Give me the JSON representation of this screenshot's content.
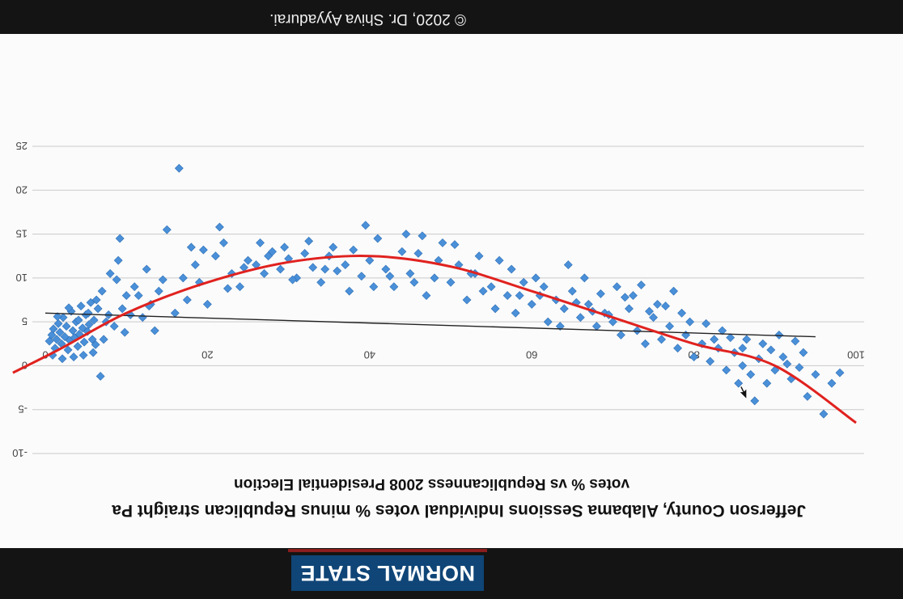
{
  "video": {
    "copyright": "© 2020, Dr. Shiva Ayyadurai.",
    "badge": "NORMAL STATE"
  },
  "chart_data": {
    "type": "scatter",
    "title": "Jefferson County, Alabama Sessions Individual votes % minus Republican straight Pa",
    "subtitle": "votes % vs Republicanness 2008 Presidential Election",
    "xlabel": "",
    "ylabel": "",
    "xlim": [
      0,
      100
    ],
    "ylim": [
      -10,
      25
    ],
    "x_ticks": [
      "0",
      "20",
      "40",
      "60",
      "80",
      "100"
    ],
    "y_ticks": [
      "-10",
      "-5",
      "0",
      "5",
      "10",
      "15",
      "20",
      "25"
    ],
    "grid": true,
    "marker_color": "#4a90d9",
    "poly_fit_color": "#e0221f",
    "linear_fit_color": "#222222",
    "linear_fit": [
      [
        0,
        6
      ],
      [
        95,
        3.3
      ]
    ],
    "poly_fit": [
      [
        -4,
        -0.8
      ],
      [
        2,
        2
      ],
      [
        10,
        6
      ],
      [
        20,
        9.5
      ],
      [
        30,
        11.8
      ],
      [
        40,
        12.5
      ],
      [
        50,
        11.3
      ],
      [
        60,
        8.5
      ],
      [
        70,
        5.5
      ],
      [
        80,
        2.5
      ],
      [
        90,
        0
      ],
      [
        100,
        -6.5
      ]
    ],
    "points": [
      [
        0.5,
        2.8
      ],
      [
        0.8,
        3.5
      ],
      [
        1.0,
        4.2
      ],
      [
        1.2,
        2.0
      ],
      [
        1.4,
        3.0
      ],
      [
        1.6,
        4.8
      ],
      [
        1.8,
        3.8
      ],
      [
        2.0,
        2.5
      ],
      [
        2.2,
        5.5
      ],
      [
        2.4,
        3.3
      ],
      [
        2.6,
        4.5
      ],
      [
        2.8,
        1.8
      ],
      [
        3.0,
        2.9
      ],
      [
        3.2,
        6.2
      ],
      [
        3.4,
        4.0
      ],
      [
        3.6,
        3.2
      ],
      [
        3.8,
        5.0
      ],
      [
        4.0,
        2.2
      ],
      [
        4.2,
        3.6
      ],
      [
        4.4,
        6.8
      ],
      [
        4.6,
        4.3
      ],
      [
        4.8,
        2.7
      ],
      [
        5.0,
        5.8
      ],
      [
        5.2,
        3.9
      ],
      [
        5.4,
        4.7
      ],
      [
        5.6,
        7.2
      ],
      [
        5.8,
        3.0
      ],
      [
        6.0,
        5.2
      ],
      [
        6.2,
        2.4
      ],
      [
        6.5,
        6.5
      ],
      [
        6.8,
        -1.2
      ],
      [
        7.0,
        8.5
      ],
      [
        7.5,
        5.0
      ],
      [
        8.0,
        10.5
      ],
      [
        8.5,
        4.5
      ],
      [
        9.0,
        12.0
      ],
      [
        9.5,
        6.5
      ],
      [
        10.0,
        8.0
      ],
      [
        11.0,
        9.0
      ],
      [
        12.0,
        5.5
      ],
      [
        12.5,
        11.0
      ],
      [
        13.0,
        7.0
      ],
      [
        14.0,
        8.5
      ],
      [
        15.0,
        15.5
      ],
      [
        16.0,
        6.0
      ],
      [
        17.0,
        10.0
      ],
      [
        18.0,
        13.5
      ],
      [
        19.0,
        9.5
      ],
      [
        20.0,
        7.0
      ],
      [
        21.0,
        12.5
      ],
      [
        22.0,
        14.0
      ],
      [
        23.0,
        10.5
      ],
      [
        24.0,
        9.0
      ],
      [
        25.0,
        12.0
      ],
      [
        26.0,
        11.5
      ],
      [
        27.0,
        10.5
      ],
      [
        28.0,
        13.0
      ],
      [
        29.0,
        11.0
      ],
      [
        30.0,
        12.2
      ],
      [
        31.0,
        10.0
      ],
      [
        32.0,
        12.8
      ],
      [
        33.0,
        11.2
      ],
      [
        34.0,
        9.5
      ],
      [
        35.0,
        12.5
      ],
      [
        36.0,
        10.8
      ],
      [
        37.0,
        11.5
      ],
      [
        38.0,
        13.2
      ],
      [
        39.0,
        10.2
      ],
      [
        40.0,
        12.0
      ],
      [
        41.0,
        14.5
      ],
      [
        42.0,
        11.0
      ],
      [
        43.0,
        9.0
      ],
      [
        44.0,
        13.0
      ],
      [
        45.0,
        10.5
      ],
      [
        46.0,
        12.8
      ],
      [
        47.0,
        8.0
      ],
      [
        48.0,
        10.0
      ],
      [
        49.0,
        14.0
      ],
      [
        50.0,
        9.5
      ],
      [
        51.0,
        11.5
      ],
      [
        52.0,
        7.5
      ],
      [
        53.0,
        10.5
      ],
      [
        54.0,
        8.5
      ],
      [
        55.0,
        9.0
      ],
      [
        56.0,
        12.0
      ],
      [
        57.0,
        8.0
      ],
      [
        58.0,
        6.0
      ],
      [
        59.0,
        9.5
      ],
      [
        60.0,
        7.0
      ],
      [
        61.0,
        8.0
      ],
      [
        62.0,
        5.0
      ],
      [
        63.0,
        7.5
      ],
      [
        64.0,
        6.5
      ],
      [
        65.0,
        8.5
      ],
      [
        66.0,
        5.5
      ],
      [
        67.0,
        7.0
      ],
      [
        68.0,
        4.5
      ],
      [
        69.0,
        6.0
      ],
      [
        70.0,
        5.0
      ],
      [
        71.0,
        3.5
      ],
      [
        72.0,
        6.5
      ],
      [
        73.0,
        4.0
      ],
      [
        74.0,
        2.5
      ],
      [
        75.0,
        5.5
      ],
      [
        76.0,
        3.0
      ],
      [
        77.0,
        4.5
      ],
      [
        78.0,
        2.0
      ],
      [
        79.0,
        3.5
      ],
      [
        80.0,
        1.0
      ],
      [
        81.0,
        2.5
      ],
      [
        82.0,
        0.5
      ],
      [
        83.0,
        2.0
      ],
      [
        84.0,
        -0.5
      ],
      [
        85.0,
        1.5
      ],
      [
        86.0,
        0.0
      ],
      [
        87.0,
        -1.0
      ],
      [
        88.0,
        0.8
      ],
      [
        89.0,
        -2.0
      ],
      [
        90.0,
        -0.5
      ],
      [
        91.0,
        1.0
      ],
      [
        92.0,
        -1.5
      ],
      [
        93.0,
        -0.2
      ],
      [
        94.0,
        -3.5
      ],
      [
        95.0,
        -1.0
      ],
      [
        96.0,
        -5.5
      ],
      [
        97.0,
        -2.0
      ],
      [
        98.0,
        -0.8
      ],
      [
        86.5,
        3.0
      ],
      [
        88.5,
        2.5
      ],
      [
        87.5,
        -4.0
      ],
      [
        75.5,
        7.0
      ],
      [
        77.5,
        8.5
      ],
      [
        73.5,
        9.2
      ],
      [
        71.5,
        7.8
      ],
      [
        68.5,
        8.2
      ],
      [
        66.5,
        10.0
      ],
      [
        64.5,
        11.5
      ],
      [
        61.5,
        9.0
      ],
      [
        57.5,
        11.0
      ],
      [
        53.5,
        12.5
      ],
      [
        46.5,
        14.8
      ],
      [
        44.5,
        15.0
      ],
      [
        39.5,
        16.0
      ],
      [
        34.5,
        11.0
      ],
      [
        29.5,
        13.5
      ],
      [
        26.5,
        14.0
      ],
      [
        21.5,
        15.8
      ],
      [
        18.5,
        11.5
      ],
      [
        16.5,
        22.5
      ],
      [
        11.5,
        8.0
      ],
      [
        9.2,
        14.5
      ],
      [
        8.8,
        9.8
      ],
      [
        7.8,
        5.8
      ],
      [
        7.2,
        3.0
      ],
      [
        6.3,
        7.5
      ],
      [
        5.9,
        1.5
      ],
      [
        5.3,
        6.0
      ],
      [
        4.7,
        1.2
      ],
      [
        4.1,
        5.2
      ],
      [
        3.5,
        1.0
      ],
      [
        2.9,
        6.6
      ],
      [
        2.1,
        0.8
      ],
      [
        1.5,
        5.6
      ],
      [
        0.9,
        1.2
      ],
      [
        89.5,
        1.8
      ],
      [
        90.5,
        3.5
      ],
      [
        91.5,
        0.2
      ],
      [
        92.5,
        2.8
      ],
      [
        93.5,
        1.5
      ],
      [
        84.5,
        3.2
      ],
      [
        85.5,
        -2.0
      ],
      [
        86.0,
        2.0
      ],
      [
        83.5,
        4.0
      ],
      [
        82.5,
        3.0
      ],
      [
        81.5,
        4.8
      ],
      [
        79.5,
        5.0
      ],
      [
        78.5,
        6.0
      ],
      [
        76.5,
        6.8
      ],
      [
        74.5,
        6.2
      ],
      [
        72.5,
        8.0
      ],
      [
        70.5,
        9.0
      ],
      [
        69.5,
        5.8
      ],
      [
        67.5,
        6.2
      ],
      [
        65.5,
        7.2
      ],
      [
        63.5,
        4.5
      ],
      [
        60.5,
        10.0
      ],
      [
        58.5,
        8.0
      ],
      [
        55.5,
        6.5
      ],
      [
        52.5,
        10.5
      ],
      [
        50.5,
        13.8
      ],
      [
        48.5,
        12.0
      ],
      [
        45.5,
        9.5
      ],
      [
        42.5,
        10.2
      ],
      [
        40.5,
        9.0
      ],
      [
        37.5,
        8.5
      ],
      [
        35.5,
        13.5
      ],
      [
        32.5,
        14.2
      ],
      [
        30.5,
        9.8
      ],
      [
        27.5,
        12.5
      ],
      [
        24.5,
        11.2
      ],
      [
        22.5,
        8.8
      ],
      [
        19.5,
        13.2
      ],
      [
        17.5,
        7.5
      ],
      [
        14.5,
        9.8
      ],
      [
        13.5,
        4.0
      ],
      [
        12.8,
        6.8
      ],
      [
        10.5,
        5.8
      ],
      [
        9.8,
        3.8
      ]
    ]
  }
}
